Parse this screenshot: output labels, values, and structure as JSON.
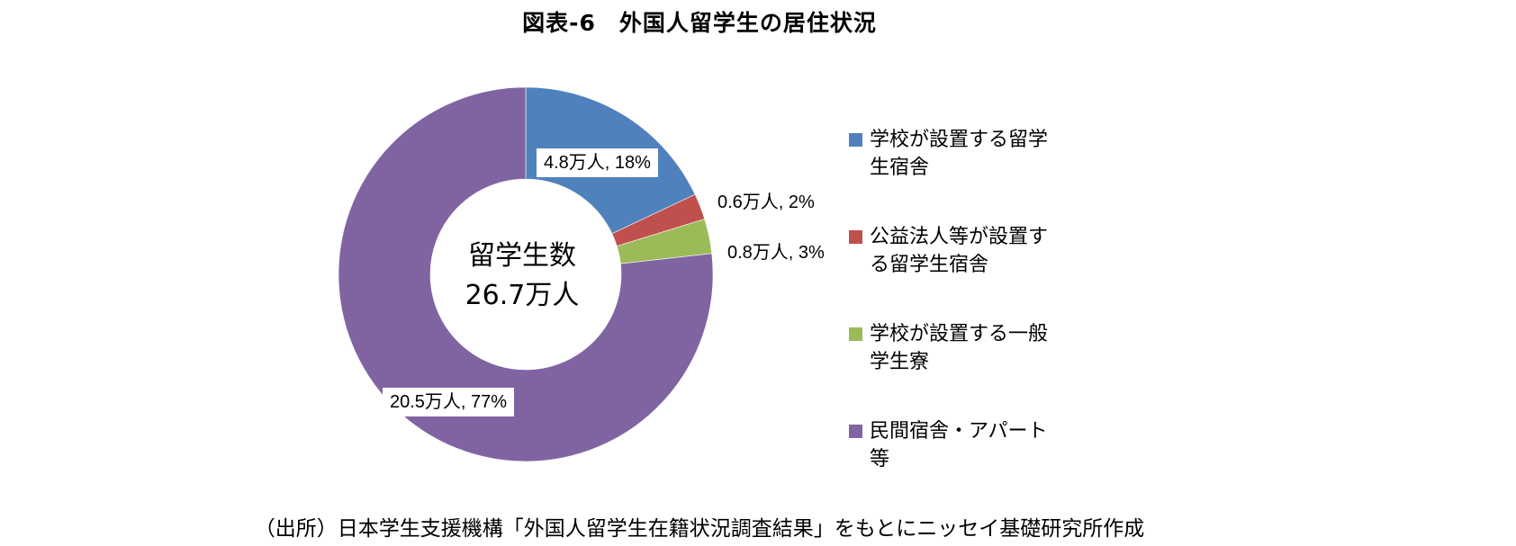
{
  "title": "図表-6　外国人留学生の居住状況",
  "center_label": {
    "line1": "留学生数",
    "line2": "26.7万人"
  },
  "source": "（出所）日本学生支援機構「外国人留学生在籍状況調査結果」をもとにニッセイ基礎研究所作成",
  "colors": {
    "blue": "#4F81BD",
    "red": "#C0504D",
    "green": "#9BBB59",
    "purple": "#8064A2"
  },
  "segments": [
    {
      "name": "学校が設置する留学生宿舎",
      "legend": "学校が設置する留学生宿舎",
      "value": 4.8,
      "percent": 18,
      "label": "4.8万人, 18%",
      "color": "#4F81BD"
    },
    {
      "name": "公益法人等が設置する留学生宿舎",
      "legend": "公益法人等が設置する留学生宿舎",
      "value": 0.6,
      "percent": 2,
      "label": "0.6万人, 2%",
      "color": "#C0504D"
    },
    {
      "name": "学校が設置する一般学生寮",
      "legend": "学校が設置する一般学生寮",
      "value": 0.8,
      "percent": 3,
      "label": "0.8万人, 3%",
      "color": "#9BBB59"
    },
    {
      "name": "民間宿舎・アパート等",
      "legend": "民間宿舎・アパート等",
      "value": 20.5,
      "percent": 77,
      "label": "20.5万人, 77%",
      "color": "#8064A2"
    }
  ],
  "chart_data": {
    "type": "pie",
    "subtype": "donut",
    "title": "図表-6　外国人留学生の居住状況",
    "center_annotation": "留学生数 26.7万人",
    "unit": "万人",
    "categories": [
      "学校が設置する留学生宿舎",
      "公益法人等が設置する留学生宿舎",
      "学校が設置する一般学生寮",
      "民間宿舎・アパート等"
    ],
    "values": [
      4.8,
      0.6,
      0.8,
      20.5
    ],
    "percentages": [
      18,
      2,
      3,
      77
    ],
    "data_labels": [
      "4.8万人, 18%",
      "0.6万人, 2%",
      "0.8万人, 3%",
      "20.5万人, 77%"
    ],
    "colors": [
      "#4F81BD",
      "#C0504D",
      "#9BBB59",
      "#8064A2"
    ],
    "total": 26.7,
    "legend_position": "right",
    "start_angle": "12 o'clock, clockwise",
    "source": "（出所）日本学生支援機構「外国人留学生在籍状況調査結果」をもとにニッセイ基礎研究所作成"
  }
}
